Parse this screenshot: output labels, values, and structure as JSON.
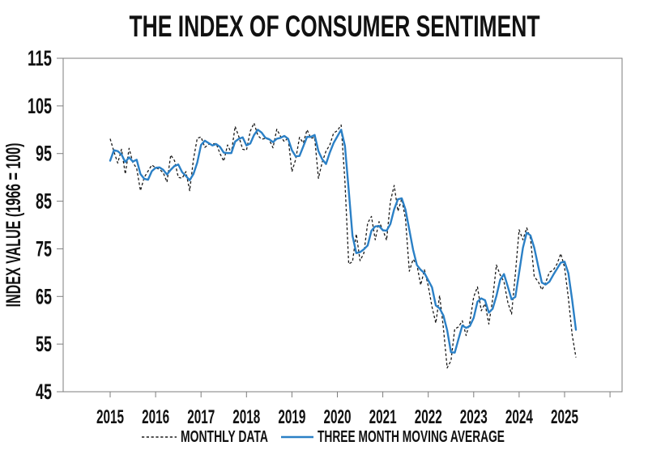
{
  "chart_data": {
    "type": "line",
    "title": "THE INDEX OF CONSUMER SENTIMENT",
    "ylabel": "INDEX VALUE (1966 = 100)",
    "ylim": [
      45,
      115
    ],
    "ytick_step": 10,
    "ytick_labels": [
      "45",
      "55",
      "65",
      "75",
      "85",
      "95",
      "105",
      "115"
    ],
    "x_tick_years": [
      2015,
      2016,
      2017,
      2018,
      2019,
      2020,
      2021,
      2022,
      2023,
      2024,
      2025
    ],
    "x_start_month": "2015-01",
    "x_end_month": "2025-04",
    "grid": false,
    "legend_position": "bottom-center",
    "axis_color": "#7d7d7d",
    "text_color": "#111111",
    "series": [
      {
        "name": "MONTHLY DATA",
        "style": "dashed",
        "color": "#1a1a1a",
        "values": [
          98.1,
          95.4,
          93.0,
          95.9,
          90.7,
          96.1,
          93.1,
          91.9,
          87.2,
          90.0,
          91.3,
          92.6,
          92.0,
          91.7,
          91.0,
          89.0,
          94.7,
          93.5,
          90.0,
          89.8,
          91.2,
          87.2,
          93.8,
          98.2,
          98.5,
          96.3,
          96.9,
          97.0,
          97.1,
          95.0,
          93.4,
          96.8,
          95.1,
          100.7,
          98.5,
          95.9,
          95.7,
          99.7,
          101.4,
          98.8,
          98.0,
          98.2,
          97.9,
          96.2,
          100.1,
          98.6,
          97.5,
          98.3,
          91.2,
          93.8,
          98.4,
          97.2,
          100.0,
          98.2,
          98.4,
          89.8,
          93.2,
          95.5,
          96.8,
          99.3,
          99.8,
          101.0,
          89.1,
          71.8,
          72.3,
          78.1,
          72.5,
          74.1,
          80.4,
          81.8,
          76.9,
          80.7,
          79.0,
          76.8,
          84.9,
          88.3,
          82.9,
          85.5,
          81.2,
          70.3,
          72.8,
          71.7,
          67.4,
          70.6,
          67.2,
          62.8,
          59.4,
          65.2,
          58.4,
          50.0,
          51.5,
          58.2,
          58.6,
          59.9,
          56.8,
          59.7,
          64.9,
          67.0,
          62.0,
          63.5,
          59.2,
          64.4,
          71.6,
          69.5,
          68.1,
          63.8,
          61.3,
          69.7,
          79.0,
          76.9,
          79.4,
          77.2,
          69.1,
          68.2,
          66.4,
          67.9,
          70.1,
          70.5,
          71.8,
          74.0,
          71.1,
          64.7,
          57.0,
          52.2
        ]
      },
      {
        "name": "THREE MONTH MOVING AVERAGE",
        "style": "solid",
        "color": "#2b80c6",
        "derived_as": "trailing 3-month average of monthly data",
        "values": [
          93.5,
          95.7,
          95.5,
          94.8,
          93.2,
          94.2,
          93.3,
          93.7,
          90.7,
          89.7,
          89.5,
          91.3,
          92.0,
          92.1,
          91.6,
          90.6,
          91.6,
          92.4,
          92.7,
          91.1,
          90.3,
          89.4,
          90.7,
          93.1,
          96.8,
          97.7,
          97.2,
          96.7,
          97.0,
          96.4,
          95.2,
          95.1,
          95.1,
          97.5,
          98.1,
          98.4,
          96.7,
          97.1,
          98.9,
          100.0,
          99.4,
          98.3,
          98.0,
          97.4,
          98.1,
          98.3,
          98.7,
          98.1,
          95.7,
          94.4,
          94.5,
          96.5,
          98.5,
          98.5,
          98.9,
          95.5,
          93.8,
          92.8,
          95.2,
          97.2,
          98.6,
          100.0,
          96.6,
          87.3,
          77.7,
          74.1,
          74.3,
          74.9,
          75.7,
          78.8,
          79.7,
          79.8,
          78.9,
          78.8,
          80.2,
          83.3,
          85.4,
          85.6,
          83.2,
          79.0,
          74.8,
          71.6,
          70.6,
          69.9,
          68.4,
          66.9,
          63.1,
          62.5,
          61.0,
          57.9,
          53.3,
          53.2,
          56.1,
          58.9,
          58.4,
          58.8,
          60.5,
          63.9,
          64.6,
          64.2,
          61.6,
          62.4,
          65.1,
          68.5,
          69.7,
          67.1,
          64.4,
          64.9,
          70.0,
          75.2,
          78.4,
          77.8,
          75.2,
          71.5,
          67.9,
          67.5,
          68.1,
          69.5,
          70.8,
          72.1,
          72.3,
          69.9,
          64.3,
          58.0
        ]
      }
    ]
  }
}
